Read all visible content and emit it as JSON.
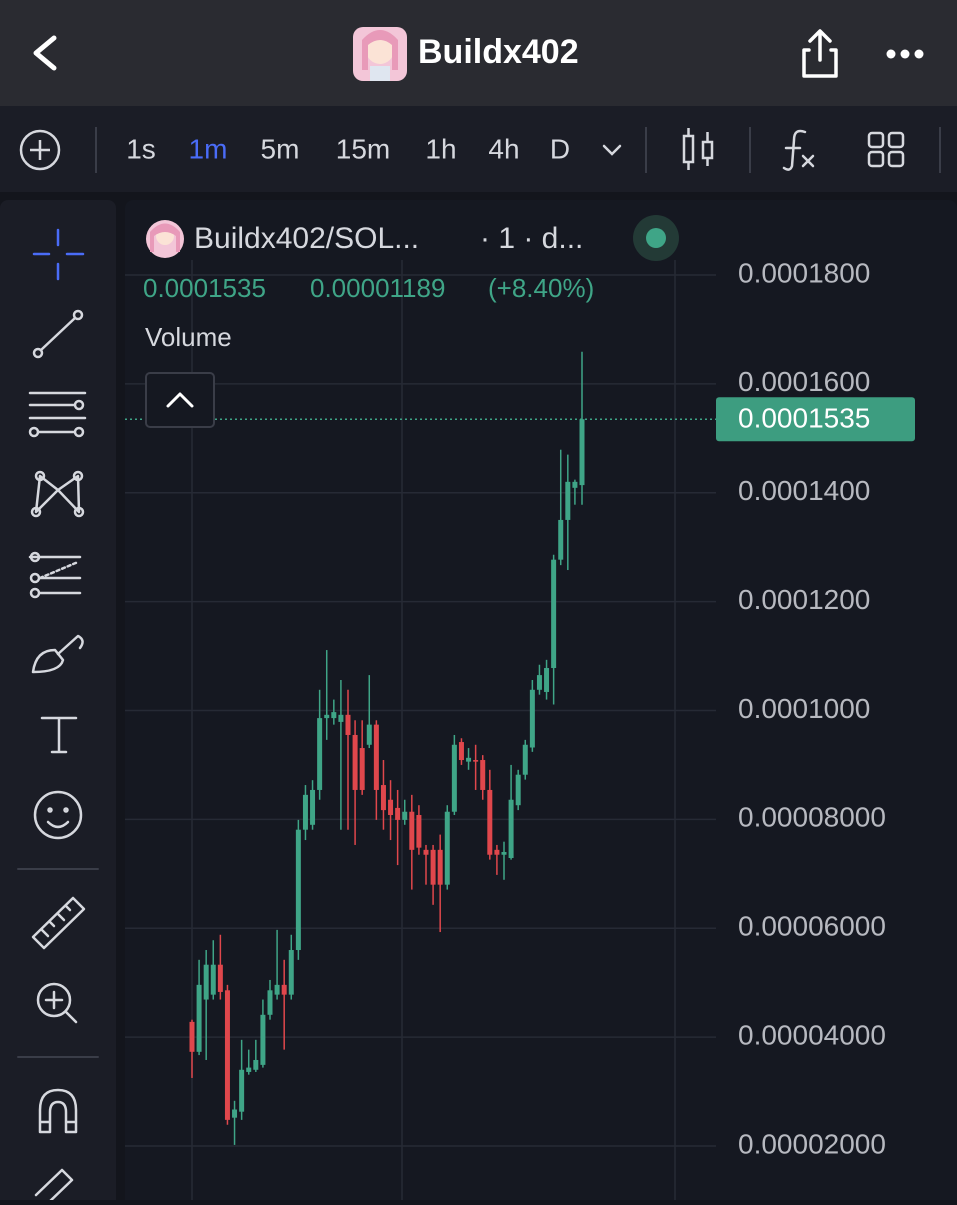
{
  "header": {
    "title": "Buildx402"
  },
  "toolbar": {
    "timeframes": [
      "1s",
      "1m",
      "5m",
      "15m",
      "1h",
      "4h",
      "D"
    ],
    "active_timeframe": 1
  },
  "legend": {
    "pair": "Buildx402/SOL...",
    "interval": "· 1 · d...",
    "price": "0.0001535",
    "change": "0.00001189",
    "change_pct": "(+8.40%)",
    "volume_label": "Volume"
  },
  "chart_data": {
    "type": "candlestick",
    "up_color": "#3fa587",
    "down_color": "#e0474c",
    "open": [
      4.28e-05,
      3.73e-05,
      4.69e-05,
      4.78e-05,
      5.33e-05,
      4.86e-05,
      2.52e-05,
      2.63e-05,
      3.36e-05,
      3.4e-05,
      3.49e-05,
      4.41e-05,
      4.78e-05,
      4.96e-05,
      4.78e-05,
      5.6e-05,
      7.81e-05,
      7.9e-05,
      8.54e-05,
      9.86e-05,
      9.86e-05,
      9.79e-05,
      9.92e-05,
      9.55e-05,
      9.31e-05,
      9.37e-05,
      9.74e-05,
      8.63e-05,
      8.36e-05,
      8.21e-05,
      7.99e-05,
      8.14e-05,
      8.08e-05,
      7.44e-05,
      7.44e-05,
      7.44e-05,
      6.8e-05,
      8.14e-05,
      9.42e-05,
      9.06e-05,
      9.09e-05,
      9.09e-05,
      8.54e-05,
      7.44e-05,
      7.35e-05,
      7.29e-05,
      8.26e-05,
      8.82e-05,
      9.32e-05,
      0.0001038,
      0.0001034,
      0.0001078,
      0.0001277,
      0.000135,
      0.0001409,
      0.0001414
    ],
    "high": [
      4.32e-05,
      5.42e-05,
      5.6e-05,
      5.78e-05,
      5.88e-05,
      4.96e-05,
      2.83e-05,
      3.95e-05,
      3.77e-05,
      3.95e-05,
      4.69e-05,
      5.05e-05,
      5.97e-05,
      5.42e-05,
      5.88e-05,
      7.99e-05,
      8.63e-05,
      8.72e-05,
      0.0001038,
      0.0001111,
      0.000102,
      0.0001056,
      0.0001038,
      9.82e-05,
      9.82e-05,
      0.0001065,
      9.82e-05,
      9.09e-05,
      8.72e-05,
      8.54e-05,
      8.36e-05,
      8.45e-05,
      8.26e-05,
      7.53e-05,
      7.53e-05,
      7.72e-05,
      8.26e-05,
      9.55e-05,
      9.49e-05,
      9.31e-05,
      9.37e-05,
      9.18e-05,
      8.91e-05,
      7.53e-05,
      7.59e-05,
      9e-05,
      8.91e-05,
      9.46e-05,
      0.0001056,
      0.0001084,
      0.0001093,
      0.0001286,
      0.0001479,
      0.000147,
      0.0001424,
      0.0001659
    ],
    "low": [
      3.25e-05,
      3.67e-05,
      3.58e-05,
      4.69e-05,
      4.69e-05,
      2.39e-05,
      2.02e-05,
      2.48e-05,
      3.31e-05,
      3.36e-05,
      3.44e-05,
      4.32e-05,
      4.69e-05,
      3.77e-05,
      4.69e-05,
      5.42e-05,
      7.62e-05,
      7.81e-05,
      8.36e-05,
      9.46e-05,
      9.74e-05,
      7.81e-05,
      7.81e-05,
      7.53e-05,
      8.45e-05,
      9.31e-05,
      7.99e-05,
      7.81e-05,
      7.62e-05,
      7.16e-05,
      7.9e-05,
      6.71e-05,
      7.35e-05,
      6.8e-05,
      6.43e-05,
      5.93e-05,
      6.71e-05,
      8.08e-05,
      9e-05,
      8.91e-05,
      8.54e-05,
      8.36e-05,
      7.26e-05,
      6.98e-05,
      6.89e-05,
      7.26e-05,
      8.17e-05,
      8.73e-05,
      9.24e-05,
      0.0001029,
      0.000102,
      0.0001011,
      0.0001267,
      0.0001258,
      0.0001378,
      0.0001378
    ],
    "close": [
      3.73e-05,
      4.96e-05,
      5.33e-05,
      5.33e-05,
      4.83e-05,
      2.48e-05,
      2.67e-05,
      3.4e-05,
      3.44e-05,
      3.58e-05,
      4.41e-05,
      4.86e-05,
      4.96e-05,
      4.78e-05,
      5.6e-05,
      7.81e-05,
      8.45e-05,
      8.54e-05,
      9.86e-05,
      9.92e-05,
      9.97e-05,
      9.92e-05,
      9.55e-05,
      8.54e-05,
      8.54e-05,
      9.74e-05,
      8.54e-05,
      8.17e-05,
      8.08e-05,
      7.99e-05,
      8.14e-05,
      7.44e-05,
      7.48e-05,
      7.35e-05,
      6.8e-05,
      6.8e-05,
      8.14e-05,
      9.37e-05,
      9.09e-05,
      9.13e-05,
      9.06e-05,
      8.54e-05,
      7.35e-05,
      7.35e-05,
      7.4e-05,
      8.36e-05,
      8.82e-05,
      9.37e-05,
      0.0001038,
      0.0001065,
      0.0001078,
      0.0001277,
      0.000135,
      0.000142,
      0.000142,
      0.0001535
    ],
    "ylim": [
      1.008e-05,
      0.00019377
    ],
    "yticks": [
      {
        "value": 2e-05,
        "label": "0.00002000"
      },
      {
        "value": 4e-05,
        "label": "0.00004000"
      },
      {
        "value": 6e-05,
        "label": "0.00006000"
      },
      {
        "value": 8e-05,
        "label": "0.00008000"
      },
      {
        "value": 0.0001,
        "label": "0.0001000"
      },
      {
        "value": 0.00012,
        "label": "0.0001200"
      },
      {
        "value": 0.00014,
        "label": "0.0001400"
      },
      {
        "value": 0.00016,
        "label": "0.0001600"
      },
      {
        "value": 0.00018,
        "label": "0.0001800"
      }
    ],
    "price_line": {
      "value": 0.0001535,
      "label": "0.0001535"
    },
    "grid": true
  }
}
